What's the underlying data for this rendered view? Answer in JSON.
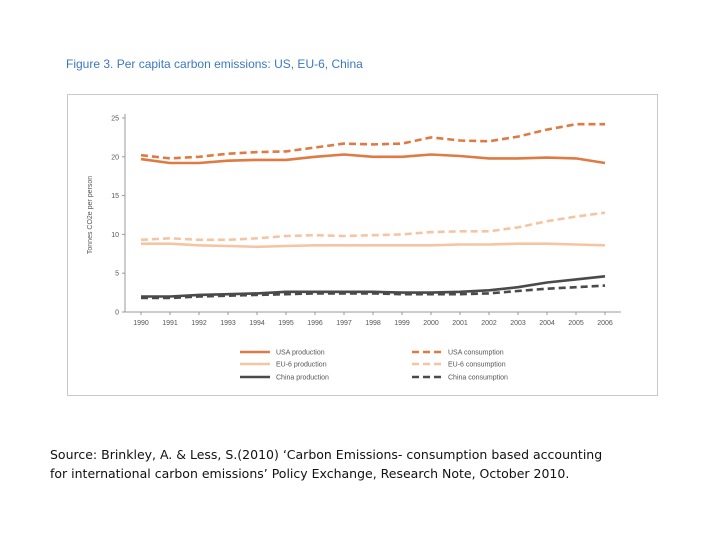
{
  "figure_title": "Figure 3. Per capita carbon emissions: US, EU-6, China",
  "source": {
    "line1": "Source: Brinkley, A. & Less, S.(2010) ‘Carbon Emissions- consumption based accounting",
    "line2": "for international carbon emissions’ Policy Exchange, Research Note, October 2010."
  },
  "chart_data": {
    "type": "line",
    "title": "Figure 3. Per capita carbon emissions: US, EU-6, China",
    "xlabel": "",
    "ylabel": "Tonnes CO2e per person",
    "x": [
      "1990",
      "1991",
      "1992",
      "1993",
      "1994",
      "1995",
      "1996",
      "1997",
      "1998",
      "1999",
      "2000",
      "2001",
      "2002",
      "2003",
      "2004",
      "2005",
      "2006"
    ],
    "yticks": [
      "0",
      "5",
      "10",
      "15",
      "20",
      "25"
    ],
    "ylim": [
      0,
      25
    ],
    "grid": false,
    "legend_position": "bottom",
    "series": [
      {
        "name": "USA production",
        "color": "#e07a43",
        "dash": false,
        "values": [
          19.7,
          19.2,
          19.2,
          19.5,
          19.6,
          19.6,
          20.0,
          20.3,
          20.0,
          20.0,
          20.3,
          20.1,
          19.8,
          19.8,
          19.9,
          19.8,
          19.2
        ]
      },
      {
        "name": "USA consumption",
        "color": "#e07a43",
        "dash": true,
        "values": [
          20.2,
          19.8,
          20.0,
          20.4,
          20.6,
          20.7,
          21.2,
          21.7,
          21.6,
          21.7,
          22.5,
          22.1,
          22.0,
          22.6,
          23.5,
          24.2,
          24.2
        ]
      },
      {
        "name": "EU-6 production",
        "color": "#f5c5a3",
        "dash": false,
        "values": [
          8.8,
          8.8,
          8.6,
          8.5,
          8.4,
          8.5,
          8.6,
          8.6,
          8.6,
          8.6,
          8.6,
          8.7,
          8.7,
          8.8,
          8.8,
          8.7,
          8.6
        ]
      },
      {
        "name": "EU-6 consumption",
        "color": "#f5c5a3",
        "dash": true,
        "values": [
          9.3,
          9.5,
          9.3,
          9.3,
          9.5,
          9.8,
          9.9,
          9.8,
          9.9,
          10.0,
          10.3,
          10.4,
          10.4,
          10.9,
          11.7,
          12.3,
          12.8
        ]
      },
      {
        "name": "China production",
        "color": "#4a4a4a",
        "dash": false,
        "values": [
          2.0,
          2.0,
          2.2,
          2.3,
          2.4,
          2.6,
          2.6,
          2.6,
          2.6,
          2.5,
          2.5,
          2.6,
          2.8,
          3.2,
          3.8,
          4.2,
          4.6
        ]
      },
      {
        "name": "China consumption",
        "color": "#4a4a4a",
        "dash": true,
        "values": [
          1.8,
          1.8,
          2.0,
          2.1,
          2.2,
          2.3,
          2.4,
          2.4,
          2.4,
          2.3,
          2.3,
          2.3,
          2.4,
          2.7,
          3.0,
          3.2,
          3.4
        ]
      }
    ]
  }
}
